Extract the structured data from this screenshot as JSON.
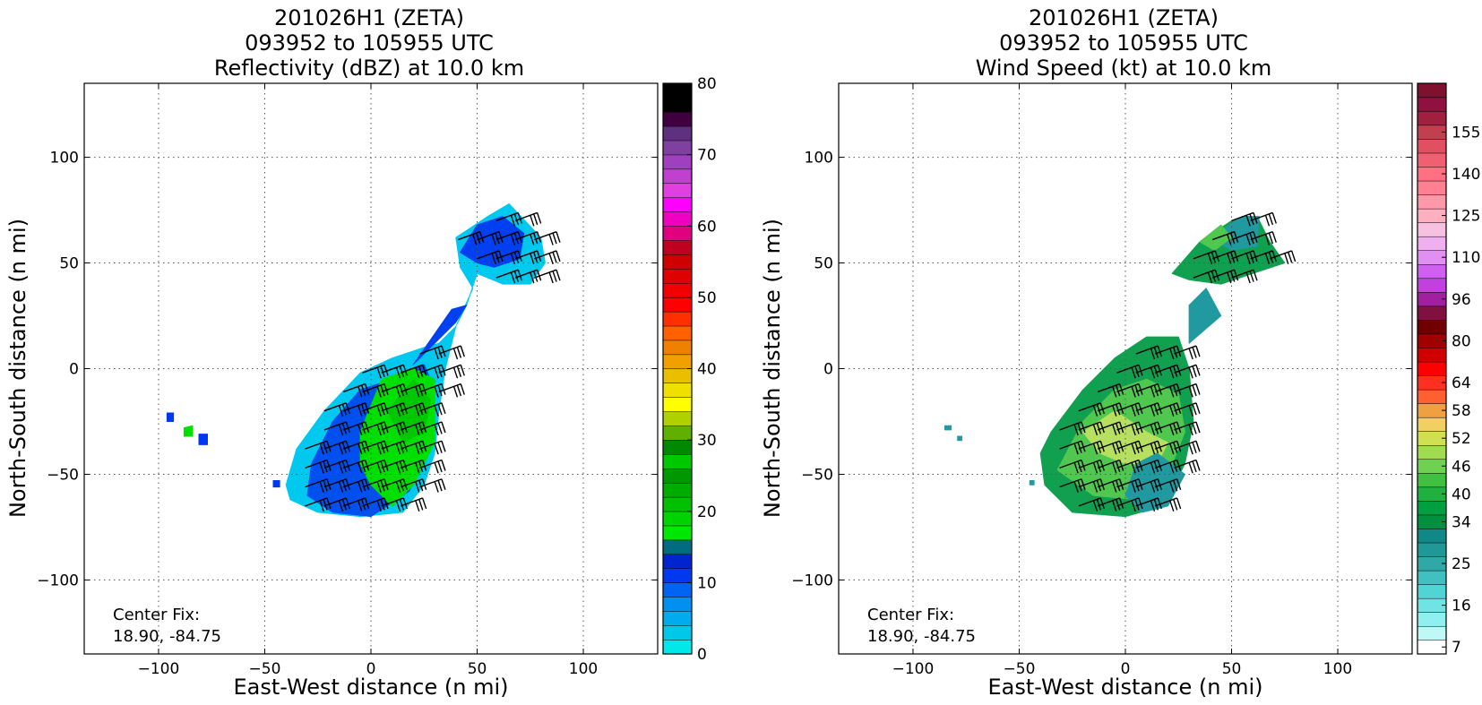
{
  "chart_data": [
    {
      "type": "heatmap",
      "title_lines": [
        "201026H1 (ZETA)",
        "093952 to 105955 UTC",
        "Reflectivity (dBZ) at 10.0 km"
      ],
      "xlabel": "East-West distance (n mi)",
      "ylabel": "North-South distance (n mi)",
      "xlim": [
        -135,
        135
      ],
      "ylim": [
        -135,
        135
      ],
      "xticks": [
        "−100",
        "−50",
        "0",
        "50",
        "100"
      ],
      "xtick_values": [
        -100,
        -50,
        0,
        50,
        100
      ],
      "yticks": [
        "100",
        "50",
        "0",
        "−50",
        "−100"
      ],
      "ytick_values": [
        100,
        50,
        0,
        -50,
        -100
      ],
      "grid": true,
      "annotation": [
        "Center Fix:",
        "18.90, -84.75"
      ],
      "colorbar": {
        "min": 0,
        "max": 80,
        "ticks": [
          "0",
          "10",
          "20",
          "30",
          "40",
          "50",
          "60",
          "70",
          "80"
        ],
        "tick_values": [
          0,
          10,
          20,
          30,
          40,
          50,
          60,
          70,
          80
        ],
        "colors": [
          "#00e8e8",
          "#00c8e8",
          "#00acec",
          "#0090f0",
          "#0064f0",
          "#0038f0",
          "#0024d0",
          "#006c80",
          "#00e800",
          "#00d400",
          "#00c000",
          "#00ac00",
          "#009800",
          "#00c800",
          "#008800",
          "#60b000",
          "#b0d000",
          "#ffff00",
          "#f0e000",
          "#e8c000",
          "#f0a000",
          "#f08000",
          "#ff6000",
          "#ff3000",
          "#ff0000",
          "#f00000",
          "#e00000",
          "#d00000",
          "#c00020",
          "#e00080",
          "#f000c0",
          "#ff00ff",
          "#e040e0",
          "#c040d0",
          "#a040c0",
          "#8040a0",
          "#603080",
          "#400040",
          "#000000",
          "#000000"
        ]
      },
      "echo_regions": [
        {
          "level": "low",
          "color": "#00c8ee",
          "points": [
            [
              -40,
              -55
            ],
            [
              -35,
              -38
            ],
            [
              -22,
              -20
            ],
            [
              -5,
              -2
            ],
            [
              10,
              5
            ],
            [
              25,
              10
            ],
            [
              32,
              12
            ],
            [
              40,
              20
            ],
            [
              48,
              38
            ],
            [
              42,
              48
            ],
            [
              40,
              62
            ],
            [
              55,
              72
            ],
            [
              65,
              78
            ],
            [
              80,
              62
            ],
            [
              82,
              50
            ],
            [
              75,
              40
            ],
            [
              62,
              40
            ],
            [
              50,
              45
            ],
            [
              45,
              30
            ],
            [
              40,
              20
            ],
            [
              35,
              0
            ],
            [
              32,
              -20
            ],
            [
              30,
              -40
            ],
            [
              25,
              -55
            ],
            [
              15,
              -68
            ],
            [
              -5,
              -70
            ],
            [
              -25,
              -68
            ],
            [
              -38,
              -62
            ]
          ]
        },
        {
          "level": "moderate",
          "color": "#0050f0",
          "points": [
            [
              -30,
              -60
            ],
            [
              -28,
              -45
            ],
            [
              -18,
              -25
            ],
            [
              -5,
              -10
            ],
            [
              10,
              -5
            ],
            [
              25,
              2
            ],
            [
              30,
              -10
            ],
            [
              28,
              -35
            ],
            [
              18,
              -58
            ],
            [
              0,
              -70
            ],
            [
              -18,
              -68
            ]
          ]
        },
        {
          "level": "moderate",
          "color": "#0040f0",
          "points": [
            [
              20,
              2
            ],
            [
              40,
              22
            ],
            [
              45,
              30
            ],
            [
              38,
              28
            ]
          ]
        },
        {
          "level": "moderate",
          "color": "#0040f0",
          "points": [
            [
              42,
              55
            ],
            [
              50,
              68
            ],
            [
              62,
              72
            ],
            [
              72,
              64
            ],
            [
              70,
              52
            ],
            [
              58,
              48
            ],
            [
              50,
              50
            ]
          ]
        },
        {
          "level": "high",
          "color": "#00e000",
          "points": [
            [
              -5,
              -30
            ],
            [
              5,
              -5
            ],
            [
              20,
              0
            ],
            [
              30,
              -5
            ],
            [
              30,
              -35
            ],
            [
              20,
              -55
            ],
            [
              10,
              -65
            ],
            [
              0,
              -55
            ],
            [
              -5,
              -45
            ]
          ]
        },
        {
          "level": "high",
          "color": "#00c800",
          "points": [
            [
              8,
              -20
            ],
            [
              20,
              -5
            ],
            [
              28,
              -15
            ],
            [
              25,
              -30
            ],
            [
              15,
              -35
            ]
          ]
        },
        {
          "level": "low",
          "color": "#0038f0",
          "points": [
            [
              -96,
              -21
            ],
            [
              -93,
              -21
            ],
            [
              -93,
              -25
            ],
            [
              -96,
              -25
            ]
          ]
        },
        {
          "level": "high",
          "color": "#00e000",
          "points": [
            [
              -88,
              -28
            ],
            [
              -84,
              -27
            ],
            [
              -84,
              -32
            ],
            [
              -88,
              -32
            ]
          ]
        },
        {
          "level": "low",
          "color": "#0038f0",
          "points": [
            [
              -81,
              -31
            ],
            [
              -77,
              -31
            ],
            [
              -77,
              -36
            ],
            [
              -81,
              -36
            ]
          ]
        },
        {
          "level": "low",
          "color": "#0038f0",
          "points": [
            [
              -46,
              -53
            ],
            [
              -43,
              -53
            ],
            [
              -43,
              -56
            ],
            [
              -46,
              -56
            ]
          ]
        }
      ]
    },
    {
      "type": "heatmap",
      "title_lines": [
        "201026H1 (ZETA)",
        "093952 to 105955 UTC",
        "Wind Speed (kt) at 10.0 km"
      ],
      "xlabel": "East-West distance (n mi)",
      "ylabel": "North-South distance (n mi)",
      "xlim": [
        -135,
        135
      ],
      "ylim": [
        -135,
        135
      ],
      "xticks": [
        "−100",
        "−50",
        "0",
        "50",
        "100"
      ],
      "xtick_values": [
        -100,
        -50,
        0,
        50,
        100
      ],
      "yticks": [
        "100",
        "50",
        "0",
        "−50",
        "−100"
      ],
      "ytick_values": [
        100,
        50,
        0,
        -50,
        -100
      ],
      "grid": true,
      "annotation": [
        "Center Fix:",
        "18.90, -84.75"
      ],
      "colorbar": {
        "ticks": [
          "7",
          "16",
          "25",
          "34",
          "40",
          "46",
          "52",
          "58",
          "64",
          "80",
          "96",
          "110",
          "125",
          "140",
          "155"
        ],
        "tick_bins": [
          0,
          3,
          6,
          9,
          11,
          13,
          15,
          17,
          19,
          22,
          25,
          28,
          31,
          34,
          37
        ],
        "colors": [
          "#ffffff",
          "#c0f8f8",
          "#90f0f0",
          "#70e4e4",
          "#50d4d4",
          "#40c0c0",
          "#30a8a8",
          "#209898",
          "#108888",
          "#009040",
          "#00a040",
          "#20b040",
          "#40c040",
          "#70d050",
          "#a0dc50",
          "#d0e050",
          "#f0d060",
          "#f0a040",
          "#ff6030",
          "#ff3020",
          "#ff0000",
          "#d00000",
          "#a00000",
          "#700000",
          "#801040",
          "#a020a0",
          "#c040e0",
          "#d060f0",
          "#e090f0",
          "#f0b0f0",
          "#f8c0e0",
          "#ffb0c0",
          "#ff98a8",
          "#ff8090",
          "#ff7080",
          "#f06070",
          "#e05060",
          "#c04050",
          "#a02040",
          "#901040",
          "#801030"
        ]
      },
      "wind_regions": [
        {
          "level": "moderate",
          "color": "#10a050",
          "points": [
            [
              -40,
              -40
            ],
            [
              -35,
              -30
            ],
            [
              -20,
              -10
            ],
            [
              -5,
              5
            ],
            [
              10,
              15
            ],
            [
              25,
              15
            ],
            [
              30,
              0
            ],
            [
              32,
              -25
            ],
            [
              28,
              -45
            ],
            [
              18,
              -65
            ],
            [
              0,
              -70
            ],
            [
              -25,
              -68
            ],
            [
              -38,
              -55
            ]
          ]
        },
        {
          "level": "strong",
          "color": "#50c850",
          "points": [
            [
              -32,
              -48
            ],
            [
              -20,
              -25
            ],
            [
              -5,
              -10
            ],
            [
              10,
              -5
            ],
            [
              25,
              -12
            ],
            [
              28,
              -30
            ],
            [
              20,
              -50
            ],
            [
              5,
              -62
            ],
            [
              -15,
              -60
            ]
          ]
        },
        {
          "level": "strong",
          "color": "#b8e060",
          "points": [
            [
              -20,
              -30
            ],
            [
              -5,
              -20
            ],
            [
              10,
              -30
            ],
            [
              20,
              -35
            ],
            [
              15,
              -45
            ],
            [
              0,
              -45
            ],
            [
              -12,
              -40
            ]
          ]
        },
        {
          "level": "weak",
          "color": "#209aa0",
          "points": [
            [
              5,
              -45
            ],
            [
              15,
              -40
            ],
            [
              28,
              -50
            ],
            [
              20,
              -65
            ],
            [
              8,
              -68
            ],
            [
              0,
              -60
            ]
          ]
        },
        {
          "level": "weak",
          "color": "#209aa0",
          "points": [
            [
              30,
              12
            ],
            [
              45,
              25
            ],
            [
              38,
              38
            ],
            [
              30,
              30
            ]
          ]
        },
        {
          "level": "moderate",
          "color": "#10a050",
          "points": [
            [
              22,
              45
            ],
            [
              35,
              60
            ],
            [
              50,
              70
            ],
            [
              62,
              72
            ],
            [
              68,
              60
            ],
            [
              75,
              50
            ],
            [
              60,
              45
            ],
            [
              45,
              40
            ],
            [
              30,
              42
            ]
          ]
        },
        {
          "level": "weak",
          "color": "#209aa0",
          "points": [
            [
              40,
              62
            ],
            [
              55,
              72
            ],
            [
              63,
              72
            ],
            [
              62,
              58
            ],
            [
              50,
              56
            ]
          ]
        },
        {
          "level": "strong",
          "color": "#50c850",
          "points": [
            [
              35,
              60
            ],
            [
              45,
              68
            ],
            [
              50,
              62
            ],
            [
              42,
              56
            ]
          ]
        },
        {
          "level": "weak",
          "color": "#209aa0",
          "points": [
            [
              -85,
              -27
            ],
            [
              -82,
              -27
            ],
            [
              -82,
              -29
            ],
            [
              -85,
              -29
            ]
          ]
        },
        {
          "level": "weak",
          "color": "#209aa0",
          "points": [
            [
              -79,
              -32
            ],
            [
              -77,
              -32
            ],
            [
              -77,
              -34
            ],
            [
              -79,
              -34
            ]
          ]
        },
        {
          "level": "weak",
          "color": "#209aa0",
          "points": [
            [
              -45,
              -53
            ],
            [
              -43,
              -53
            ],
            [
              -43,
              -55
            ],
            [
              -45,
              -55
            ]
          ]
        }
      ]
    }
  ]
}
